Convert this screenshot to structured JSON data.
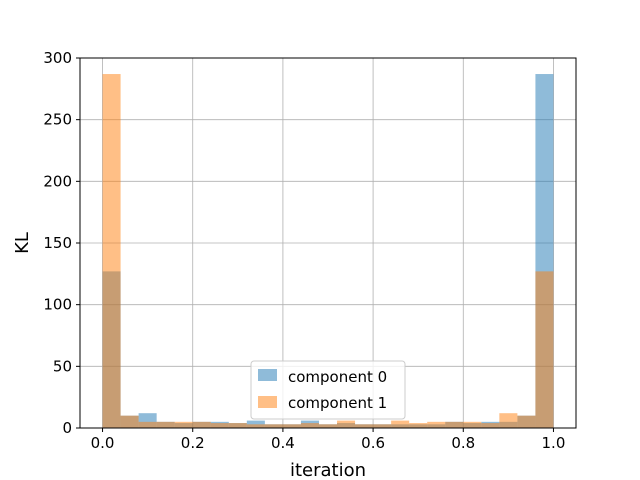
{
  "chart_data": {
    "type": "bar",
    "subtype": "overlaid-histogram",
    "xlabel": "iteration",
    "ylabel": "KL",
    "xlim": [
      -0.05,
      1.05
    ],
    "ylim": [
      0,
      300
    ],
    "xticks": [
      "0.0",
      "0.2",
      "0.4",
      "0.6",
      "0.8",
      "1.0"
    ],
    "xtick_values": [
      0,
      0.2,
      0.4,
      0.6,
      0.8,
      1.0
    ],
    "yticks": [
      "0",
      "50",
      "100",
      "150",
      "200",
      "250",
      "300"
    ],
    "ytick_values": [
      0,
      50,
      100,
      150,
      200,
      250,
      300
    ],
    "grid": true,
    "legend_position": "lower-center",
    "bin_edges": [
      0,
      0.04,
      0.08,
      0.12,
      0.16,
      0.2,
      0.24,
      0.28,
      0.32,
      0.36,
      0.4,
      0.44,
      0.48,
      0.52,
      0.56,
      0.6,
      0.64,
      0.68,
      0.72,
      0.76,
      0.8,
      0.84,
      0.88,
      0.92,
      0.96,
      1.0
    ],
    "series": [
      {
        "name": "component 0",
        "color": "#1f77b4",
        "alpha": 0.5,
        "values": [
          127,
          10,
          12,
          5,
          4,
          5,
          5,
          4,
          6,
          3,
          3,
          6,
          3,
          4,
          3,
          3,
          3,
          3,
          3,
          5,
          4,
          5,
          5,
          10,
          287
        ]
      },
      {
        "name": "component 1",
        "color": "#ff7f0e",
        "alpha": 0.5,
        "values": [
          287,
          10,
          5,
          5,
          5,
          5,
          4,
          4,
          3,
          3,
          3,
          4,
          3,
          6,
          3,
          3,
          6,
          4,
          5,
          5,
          5,
          4,
          12,
          10,
          127
        ]
      }
    ]
  }
}
